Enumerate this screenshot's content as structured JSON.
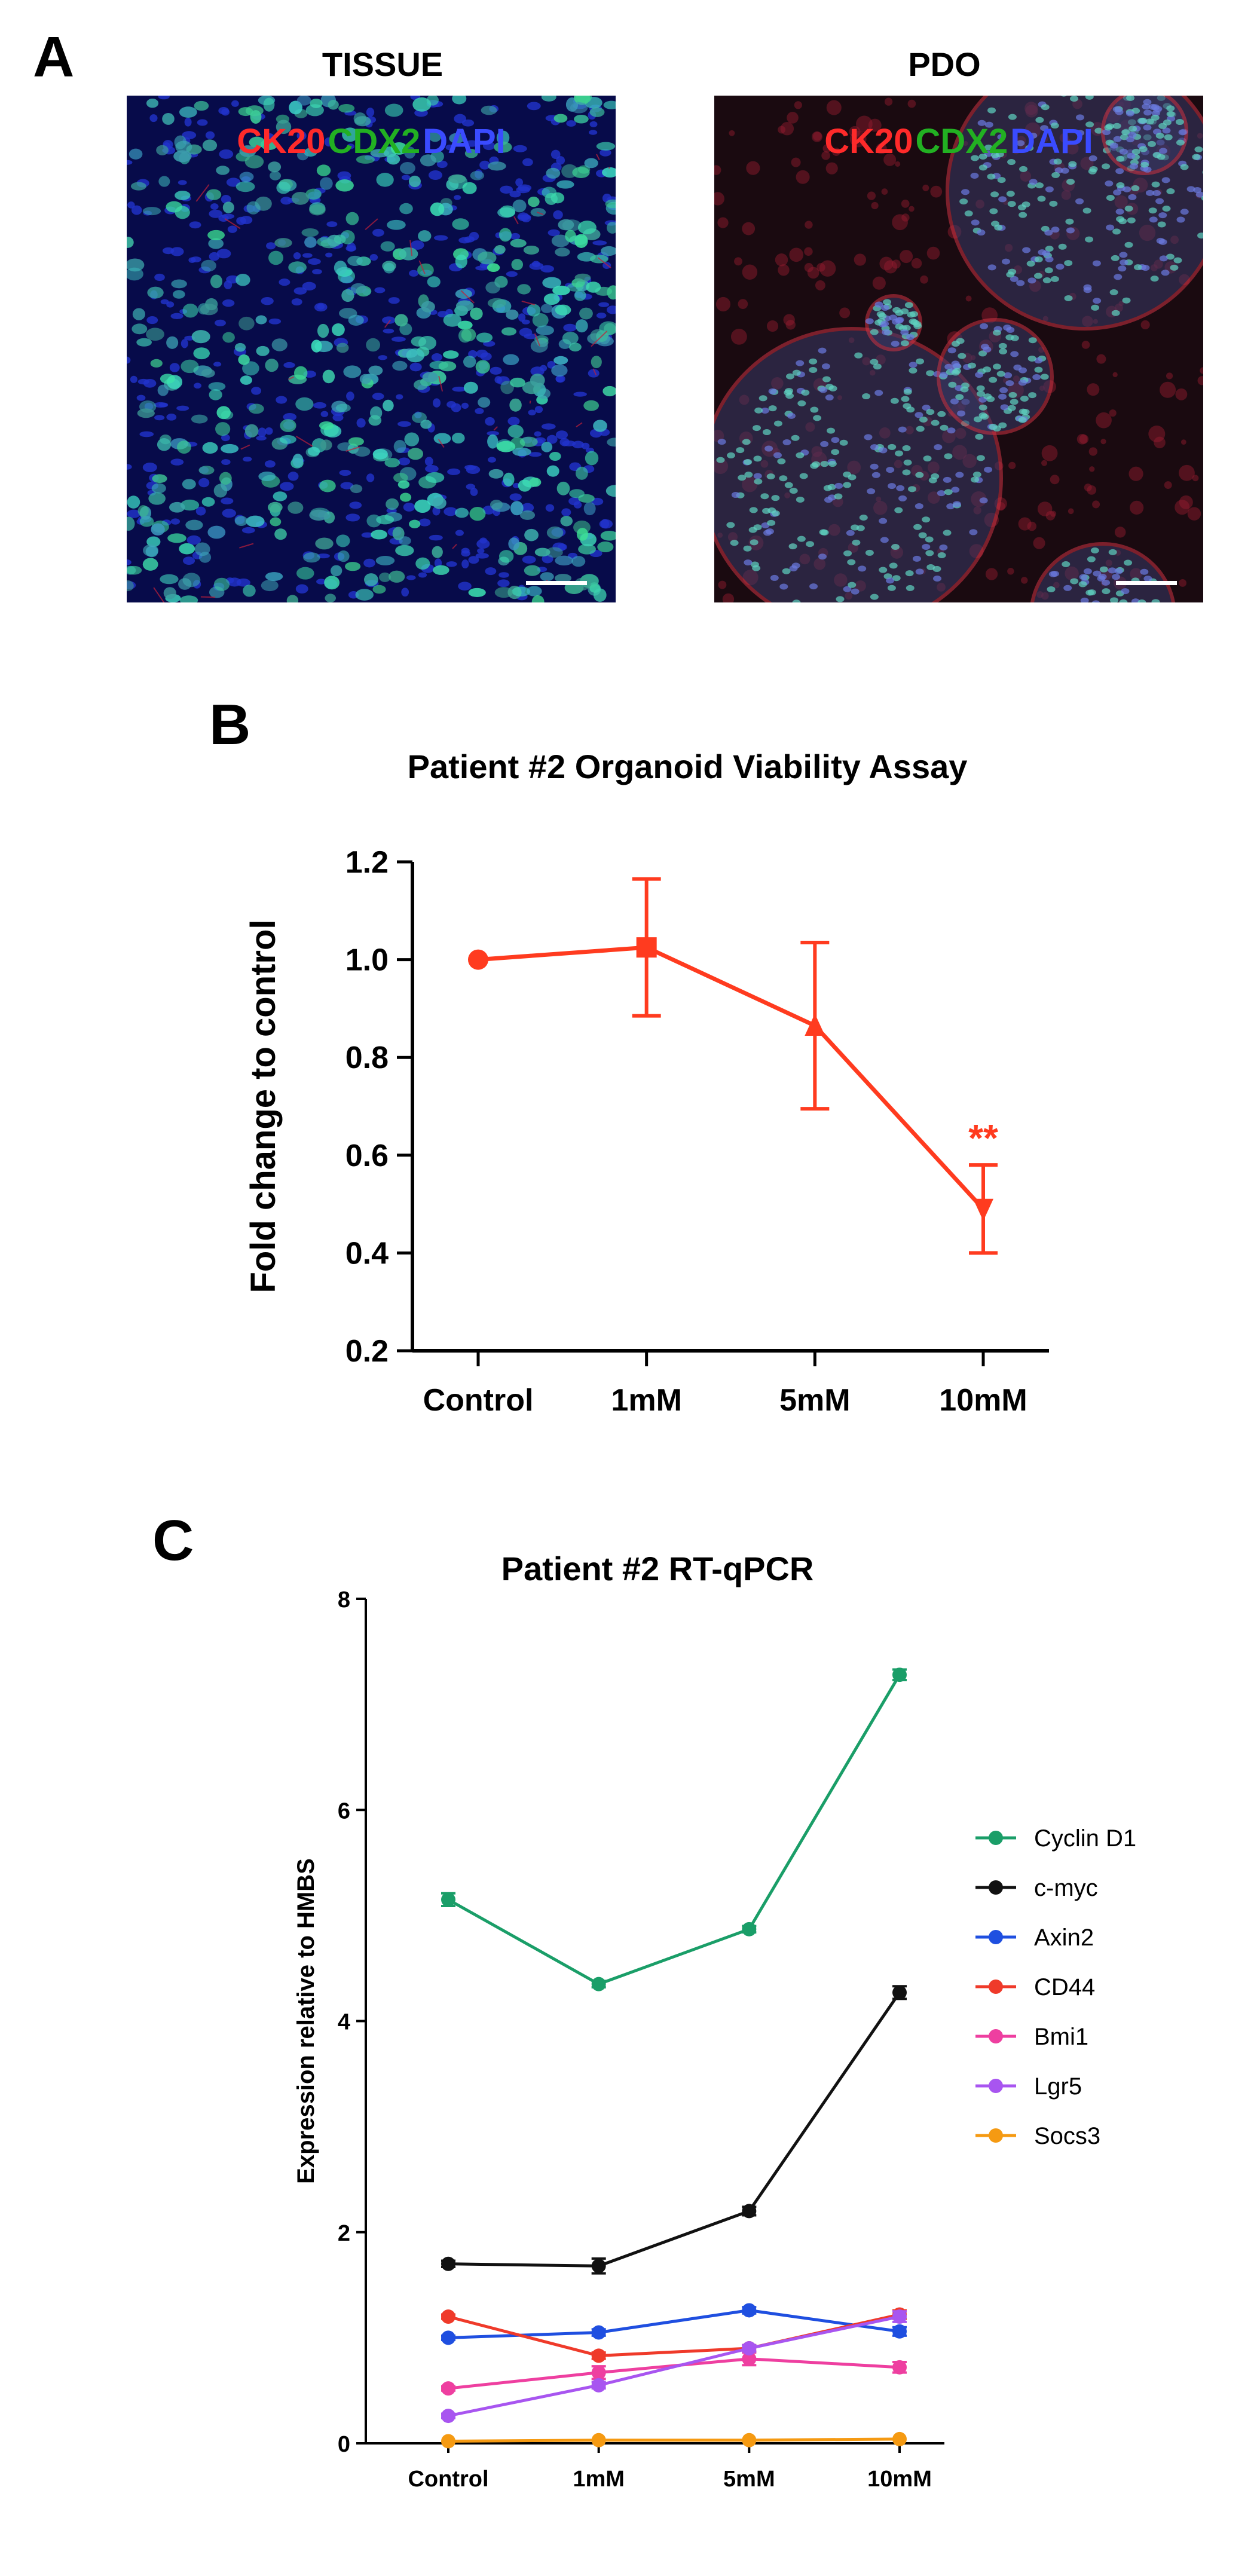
{
  "panels": {
    "a": {
      "letter": "A"
    },
    "b": {
      "letter": "B"
    },
    "c": {
      "letter": "C"
    }
  },
  "micrographs": [
    {
      "id": "tissue",
      "title": "TISSUE",
      "stains": [
        {
          "text": "CK20",
          "color": "#ff2a2a"
        },
        {
          "text": "CDX2",
          "color": "#22b022"
        },
        {
          "text": "DAPI",
          "color": "#3a4bff"
        }
      ]
    },
    {
      "id": "pdo",
      "title": "PDO",
      "stains": [
        {
          "text": "CK20",
          "color": "#ff2a2a"
        },
        {
          "text": "CDX2",
          "color": "#22b022"
        },
        {
          "text": "DAPI",
          "color": "#3a4bff"
        }
      ]
    }
  ],
  "chart_data": [
    {
      "type": "line",
      "title": "Patient #2 Organoid Viability Assay",
      "xlabel": "",
      "ylabel": "Fold change to control",
      "categories": [
        "Control",
        "1mM",
        "5mM",
        "10mM"
      ],
      "ylim": [
        0.2,
        1.2
      ],
      "yticks": [
        0.2,
        0.4,
        0.6,
        0.8,
        1.0,
        1.2
      ],
      "ytick_labels": [
        "0.2",
        "0.4",
        "0.6",
        "0.8",
        "1.0",
        "1.2"
      ],
      "color": "#ff3b1f",
      "series": [
        {
          "values": [
            1.0,
            1.025,
            0.865,
            0.49
          ],
          "errors": [
            0.0,
            0.14,
            0.17,
            0.09
          ],
          "markers": [
            "circle",
            "square",
            "triangle-up",
            "triangle-down"
          ]
        }
      ],
      "annotations": [
        {
          "text": "**",
          "category": "10mM",
          "y": 0.645,
          "color": "#ff3b1f"
        }
      ]
    },
    {
      "type": "line",
      "title": "Patient #2 RT-qPCR",
      "xlabel": "",
      "ylabel": "Expression relative to HMBS",
      "categories": [
        "Control",
        "1mM",
        "5mM",
        "10mM"
      ],
      "ylim": [
        0,
        8
      ],
      "yticks": [
        0,
        2,
        4,
        6,
        8
      ],
      "legend_position": "right",
      "series": [
        {
          "name": "Cyclin D1",
          "color": "#1a9e68",
          "values": [
            5.15,
            4.35,
            4.87,
            7.28
          ],
          "errors": [
            0.06,
            0.03,
            0.03,
            0.05
          ]
        },
        {
          "name": "c-myc",
          "color": "#111111",
          "values": [
            1.7,
            1.68,
            2.2,
            4.27
          ],
          "errors": [
            0.03,
            0.07,
            0.04,
            0.06
          ]
        },
        {
          "name": "Axin2",
          "color": "#1f4fe0",
          "values": [
            1.0,
            1.05,
            1.26,
            1.06
          ],
          "errors": [
            0.02,
            0.03,
            0.03,
            0.04
          ]
        },
        {
          "name": "CD44",
          "color": "#ef3a2a",
          "values": [
            1.2,
            0.83,
            0.9,
            1.22
          ],
          "errors": [
            0.02,
            0.03,
            0.03,
            0.04
          ]
        },
        {
          "name": "Bmi1",
          "color": "#ee3fa0",
          "values": [
            0.52,
            0.67,
            0.8,
            0.72
          ],
          "errors": [
            0.02,
            0.06,
            0.06,
            0.05
          ]
        },
        {
          "name": "Lgr5",
          "color": "#a855f0",
          "values": [
            0.26,
            0.55,
            0.9,
            1.2
          ],
          "errors": [
            0.02,
            0.03,
            0.03,
            0.05
          ]
        },
        {
          "name": "Socs3",
          "color": "#f59a12",
          "values": [
            0.02,
            0.03,
            0.03,
            0.04
          ],
          "errors": [
            0.01,
            0.01,
            0.01,
            0.01
          ]
        }
      ]
    }
  ]
}
